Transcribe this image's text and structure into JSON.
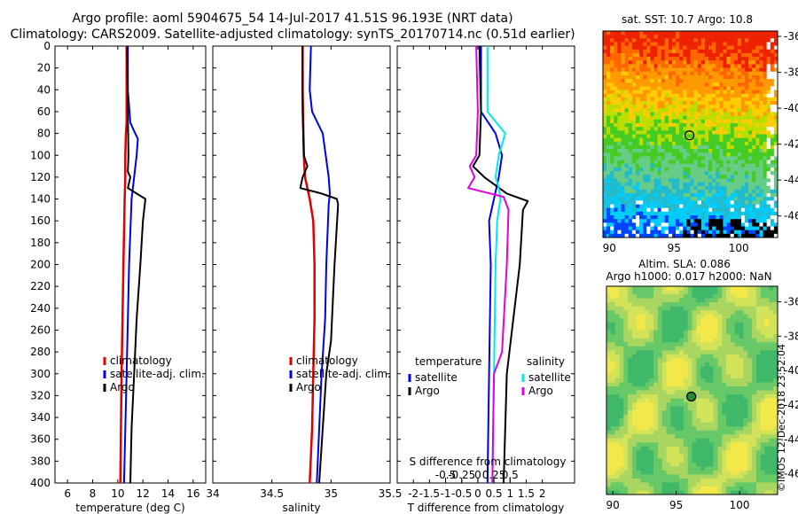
{
  "header": {
    "line1": "Argo profile: aoml 5904675_54 14-Jul-2017 41.51S 96.193E (NRT data)",
    "line2": "Climatology: CARS2009. Satellite-adjusted climatology: synTS_20170714.nc (0.51d earlier)"
  },
  "timestamp": "©IMOS 12-Dec-2018 23:52:04",
  "colors": {
    "climatology": "#e00000",
    "satellite": "#0000e0",
    "argo": "#000000",
    "salinity_satellite": "#00e8f0",
    "salinity_argo": "#e000e0"
  },
  "chart_data": [
    {
      "type": "line",
      "name": "temperature-profile",
      "xlabel": "temperature (deg C)",
      "xlim": [
        5,
        17
      ],
      "xticks": [
        6,
        8,
        10,
        12,
        14,
        16
      ],
      "ylim": [
        0,
        400
      ],
      "yticks": [
        0,
        20,
        40,
        60,
        80,
        100,
        120,
        140,
        160,
        180,
        200,
        220,
        240,
        260,
        280,
        300,
        320,
        340,
        360,
        380,
        400
      ],
      "legend": [
        "climatology",
        "satellite-adj. clim.",
        "Argo"
      ],
      "series": [
        {
          "name": "climatology",
          "color": "#e00000",
          "depth": [
            0,
            40,
            70,
            80,
            100,
            120,
            140,
            200,
            300,
            400
          ],
          "values": [
            10.7,
            10.7,
            10.7,
            10.65,
            10.6,
            10.6,
            10.55,
            10.45,
            10.3,
            10.2
          ]
        },
        {
          "name": "satellite-adj. clim.",
          "color": "#0000e0",
          "depth": [
            0,
            40,
            70,
            78,
            85,
            100,
            120,
            140,
            200,
            300,
            400
          ],
          "values": [
            10.8,
            10.8,
            11.0,
            11.3,
            11.6,
            11.5,
            11.3,
            11.1,
            10.9,
            10.7,
            10.5
          ],
          "width": 2
        },
        {
          "name": "Argo",
          "color": "#000000",
          "depth": [
            0,
            60,
            100,
            115,
            120,
            130,
            135,
            140,
            160,
            200,
            250,
            300,
            350,
            400
          ],
          "values": [
            10.75,
            10.8,
            10.85,
            10.8,
            11.0,
            10.8,
            11.5,
            12.2,
            12.0,
            11.8,
            11.5,
            11.3,
            11.1,
            11.0
          ],
          "width": 2
        }
      ]
    },
    {
      "type": "line",
      "name": "salinity-profile",
      "xlabel": "salinity",
      "xlim": [
        34,
        35.5
      ],
      "xticks": [
        34,
        34.5,
        35,
        35.5
      ],
      "ylim": [
        0,
        400
      ],
      "legend": [
        "climatology",
        "satellite-adj. clim.",
        "Argo"
      ],
      "series": [
        {
          "name": "climatology",
          "color": "#e00000",
          "depth": [
            0,
            40,
            100,
            120,
            140,
            160,
            200,
            250,
            300,
            350,
            400
          ],
          "values": [
            34.76,
            34.76,
            34.77,
            34.78,
            34.82,
            34.85,
            34.86,
            34.86,
            34.85,
            34.84,
            34.82
          ]
        },
        {
          "name": "satellite-adj. clim.",
          "color": "#0000e0",
          "depth": [
            0,
            40,
            60,
            80,
            120,
            135,
            145,
            200,
            250,
            300,
            350,
            400
          ],
          "values": [
            34.83,
            34.82,
            34.84,
            34.93,
            34.98,
            34.99,
            34.98,
            34.96,
            34.95,
            34.92,
            34.9,
            34.88
          ],
          "width": 2
        },
        {
          "name": "Argo",
          "color": "#000000",
          "depth": [
            0,
            60,
            100,
            110,
            120,
            130,
            135,
            140,
            145,
            200,
            270,
            300,
            350,
            400
          ],
          "values": [
            34.76,
            34.76,
            34.77,
            34.8,
            34.76,
            34.74,
            34.92,
            35.05,
            35.06,
            35.03,
            35.0,
            34.96,
            34.93,
            34.9
          ],
          "width": 2
        }
      ]
    },
    {
      "type": "line",
      "name": "difference-profile",
      "xlabel": "T difference from climatology",
      "xlabel_top": "S difference from climatology",
      "xlim": [
        -2.5,
        3
      ],
      "xticks": [
        -2,
        -1.5,
        -1,
        -0.5,
        0,
        0.5,
        1,
        1.5,
        2
      ],
      "xticklabels": [
        "-2",
        "-1.5",
        "-1",
        "-0.5",
        "0",
        "0.5",
        "1",
        "1.5",
        "2"
      ],
      "sticks_t": [
        -1,
        -0.5,
        0,
        0.5,
        1
      ],
      "sticklabels": [
        "-0.5",
        "-0.25",
        "0",
        "0.25",
        "0.5"
      ],
      "ylim": [
        0,
        400
      ],
      "legend_temperature": {
        "title": "temperature",
        "items": [
          "satellite",
          "Argo"
        ]
      },
      "legend_salinity": {
        "title": "salinity",
        "items": [
          "satellite",
          "Argo"
        ]
      },
      "series": [
        {
          "name": "temperature satellite",
          "color": "#0000e0",
          "depth": [
            0,
            60,
            80,
            100,
            120,
            140,
            160,
            200,
            300,
            400
          ],
          "values": [
            0.1,
            0.1,
            0.55,
            0.75,
            0.65,
            0.5,
            0.35,
            0.4,
            0.35,
            0.3
          ],
          "width": 2
        },
        {
          "name": "temperature Argo",
          "color": "#000000",
          "depth": [
            0,
            60,
            100,
            110,
            120,
            135,
            142,
            150,
            200,
            300,
            400
          ],
          "values": [
            0.05,
            0.1,
            0.05,
            -0.15,
            0.2,
            0.9,
            1.55,
            1.4,
            1.3,
            0.9,
            0.8
          ],
          "width": 2
        },
        {
          "name": "salinity satellite",
          "color": "#00e8f0",
          "depth": [
            0,
            60,
            80,
            100,
            120,
            130,
            140,
            160,
            200,
            300,
            400
          ],
          "values": [
            0.3,
            0.3,
            0.85,
            0.65,
            0.55,
            0.65,
            0.7,
            0.6,
            0.55,
            0.5,
            0.45
          ],
          "width": 2
        },
        {
          "name": "salinity Argo",
          "color": "#e000e0",
          "depth": [
            0,
            60,
            100,
            110,
            120,
            130,
            138,
            150,
            200,
            280,
            300,
            400
          ],
          "values": [
            -0.05,
            0.0,
            -0.05,
            -0.25,
            -0.1,
            -0.3,
            0.8,
            0.95,
            0.9,
            0.75,
            0.5,
            0.45
          ],
          "width": 2
        }
      ]
    },
    {
      "type": "heatmap",
      "name": "sst-map",
      "title": "sat. SST: 10.7 Argo: 10.8",
      "xlim": [
        89.5,
        103
      ],
      "ylim": [
        -47.2,
        -35.7
      ],
      "xticks": [
        90,
        95,
        100
      ],
      "yticks": [
        -36,
        -38,
        -40,
        -42,
        -44,
        -46
      ],
      "argo_position": [
        96.19,
        -41.51
      ]
    },
    {
      "type": "heatmap",
      "name": "sla-map",
      "title": "Altim. SLA: 0.086",
      "subtitle": "Argo h1000: 0.017 h2000: NaN",
      "xlim": [
        89.5,
        103
      ],
      "ylim": [
        -47.2,
        -35.1
      ],
      "xticks": [
        90,
        95,
        100
      ],
      "yticks": [
        -36,
        -38,
        -40,
        -42,
        -44,
        -46
      ],
      "argo_position": [
        96.19,
        -41.51
      ]
    }
  ]
}
